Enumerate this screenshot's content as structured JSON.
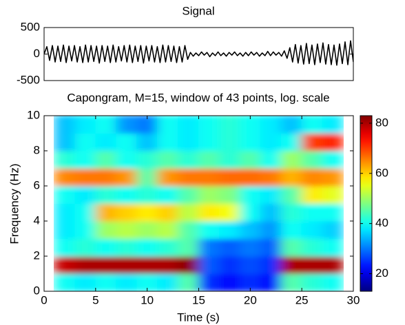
{
  "chart_data": [
    {
      "type": "line",
      "title": "Signal",
      "color": "#000000",
      "xlim": [
        1,
        29
      ],
      "ylim": [
        -500,
        500
      ],
      "yticks": [
        -500,
        0,
        500
      ],
      "x": [
        1,
        1.25,
        1.5,
        1.75,
        2,
        2.25,
        2.5,
        2.75,
        3,
        3.25,
        3.5,
        3.75,
        4,
        4.25,
        4.5,
        4.75,
        5,
        5.25,
        5.5,
        5.75,
        6,
        6.25,
        6.5,
        6.75,
        7,
        7.25,
        7.5,
        7.75,
        8,
        8.25,
        8.5,
        8.75,
        9,
        9.25,
        9.5,
        9.75,
        10,
        10.25,
        10.5,
        10.75,
        11,
        11.25,
        11.5,
        11.75,
        12,
        12.25,
        12.5,
        12.75,
        13,
        13.25,
        13.5,
        13.75,
        14,
        14.25,
        14.5,
        14.75,
        15,
        15.25,
        15.5,
        15.75,
        16,
        16.25,
        16.5,
        16.75,
        17,
        17.25,
        17.5,
        17.75,
        18,
        18.25,
        18.5,
        18.75,
        19,
        19.25,
        19.5,
        19.75,
        20,
        20.25,
        20.5,
        20.75,
        21,
        21.25,
        21.5,
        21.75,
        22,
        22.25,
        22.5,
        22.75,
        23,
        23.25,
        23.5,
        23.75,
        24,
        24.25,
        24.5,
        24.75,
        25,
        25.25,
        25.5,
        25.75,
        26,
        26.25,
        26.5,
        26.75,
        27,
        27.25,
        27.5,
        27.75,
        28,
        28.25,
        28.5,
        28.75,
        29
      ],
      "values": [
        0,
        140,
        -120,
        160,
        -150,
        150,
        -140,
        170,
        -160,
        150,
        -130,
        160,
        -150,
        140,
        -160,
        170,
        -150,
        160,
        -140,
        150,
        -170,
        160,
        -140,
        150,
        -160,
        170,
        -150,
        140,
        -130,
        160,
        -150,
        170,
        -160,
        150,
        -140,
        160,
        -170,
        150,
        -130,
        160,
        -150,
        140,
        -160,
        170,
        -150,
        160,
        -140,
        150,
        -160,
        140,
        -150,
        160,
        -100,
        30,
        -40,
        20,
        -30,
        40,
        -20,
        30,
        -50,
        20,
        -30,
        40,
        -30,
        20,
        -40,
        30,
        -20,
        40,
        -30,
        20,
        -40,
        30,
        -30,
        40,
        -20,
        30,
        -40,
        20,
        -30,
        50,
        -30,
        40,
        -20,
        30,
        -40,
        60,
        -80,
        120,
        -150,
        180,
        -170,
        160,
        -190,
        200,
        -180,
        170,
        -200,
        190,
        -160,
        210,
        -190,
        180,
        -200,
        170,
        -210,
        190,
        -180,
        230,
        -200,
        250,
        -150
      ]
    },
    {
      "type": "heatmap",
      "title": "Capongram, M=15, window of 43 points, log. scale",
      "x_label": "Time (s)",
      "y_label": "Frequency (Hz)",
      "colormap": "jet",
      "xlim": [
        0,
        30
      ],
      "ylim": [
        0,
        10
      ],
      "xticks": [
        0,
        5,
        10,
        15,
        20,
        25,
        30
      ],
      "yticks": [
        0,
        2,
        4,
        6,
        8,
        10
      ],
      "clim": [
        13,
        83
      ],
      "cticks": [
        20,
        40,
        60,
        80
      ],
      "x": [
        1,
        3,
        5,
        7,
        9,
        11,
        13,
        15,
        17,
        19,
        21,
        23,
        25,
        27,
        29
      ],
      "y": [
        0,
        1,
        2,
        3,
        4,
        5,
        6,
        7,
        8,
        9,
        10
      ],
      "z": [
        [
          40,
          38,
          40,
          38,
          40,
          38,
          45,
          25,
          22,
          25,
          22,
          45,
          42,
          40
        ],
        [
          78,
          80,
          80,
          80,
          80,
          80,
          82,
          28,
          25,
          27,
          25,
          80,
          80,
          80
        ],
        [
          40,
          42,
          40,
          42,
          40,
          42,
          45,
          30,
          28,
          30,
          28,
          45,
          42,
          40
        ],
        [
          38,
          40,
          50,
          52,
          50,
          52,
          45,
          40,
          38,
          35,
          32,
          40,
          38,
          36
        ],
        [
          38,
          40,
          62,
          60,
          58,
          60,
          52,
          58,
          56,
          40,
          35,
          42,
          40,
          40
        ],
        [
          40,
          38,
          42,
          40,
          42,
          40,
          45,
          50,
          48,
          40,
          38,
          45,
          58,
          55
        ],
        [
          65,
          66,
          66,
          64,
          45,
          64,
          66,
          66,
          67,
          67,
          66,
          62,
          65,
          64
        ],
        [
          42,
          40,
          45,
          40,
          42,
          45,
          42,
          45,
          42,
          45,
          40,
          50,
          45,
          40
        ],
        [
          35,
          40,
          38,
          40,
          35,
          40,
          38,
          40,
          42,
          40,
          38,
          40,
          70,
          72
        ],
        [
          35,
          38,
          40,
          32,
          30,
          40,
          38,
          40,
          42,
          40,
          38,
          35,
          40,
          38
        ]
      ]
    }
  ]
}
